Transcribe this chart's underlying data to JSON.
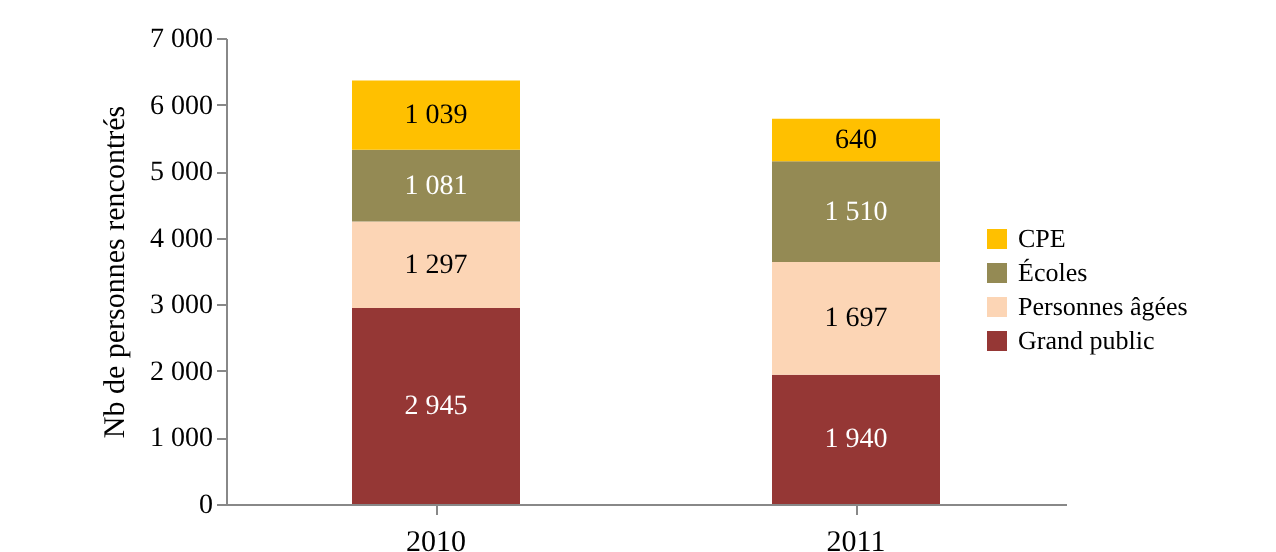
{
  "chart_data": {
    "type": "bar",
    "stacked": true,
    "ylabel": "Nb de personnes rencontrés",
    "categories": [
      "2010",
      "2011"
    ],
    "series": [
      {
        "name": "Grand public",
        "color": "#953735",
        "values": [
          2945,
          1940
        ],
        "value_labels": [
          "2 945",
          "1 940"
        ]
      },
      {
        "name": "Personnes âgées",
        "color": "#fcd5b5",
        "values": [
          1297,
          1697
        ],
        "value_labels": [
          "1 297",
          "1 697"
        ]
      },
      {
        "name": "Écoles",
        "color": "#948a54",
        "values": [
          1081,
          1510
        ],
        "value_labels": [
          "1 081",
          "1 510"
        ]
      },
      {
        "name": "CPE",
        "color": "#ffc000",
        "values": [
          1039,
          640
        ],
        "value_labels": [
          "1 039",
          "640"
        ]
      }
    ],
    "ylim": [
      0,
      7000
    ],
    "yticks": [
      0,
      {
        "value": 1000,
        "label": "1 000"
      },
      {
        "value": 2000,
        "label": "2 000"
      },
      {
        "value": 3000,
        "label": "3 000"
      },
      {
        "value": 4000,
        "label": "4 000"
      },
      {
        "value": 5000,
        "label": "5 000"
      },
      {
        "value": 6000,
        "label": "6 000"
      },
      {
        "value": 7000,
        "label": "7 000"
      }
    ],
    "grid": false,
    "legend": "right"
  }
}
